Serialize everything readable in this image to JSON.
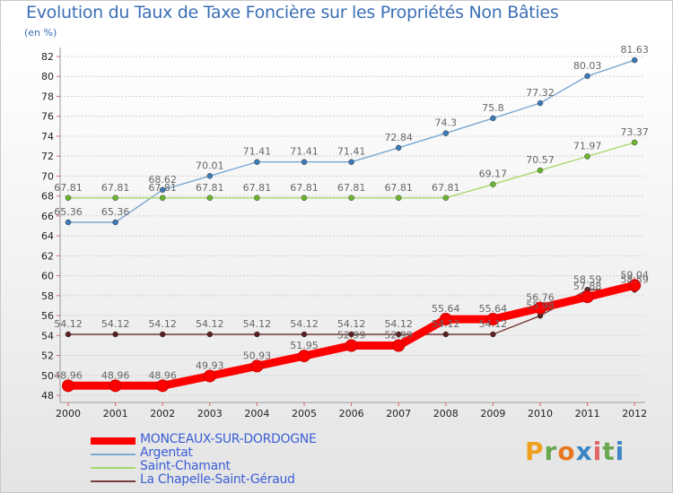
{
  "title": "Evolution du Taux de Taxe Foncière sur les Propriétés Non Bâties",
  "unit_label": "(en %)",
  "logo": {
    "text": "Proxiti",
    "letter_colors": [
      "#f0a020",
      "#6aa84f",
      "#e87722",
      "#3d85c6",
      "#e06666",
      "#6aa84f",
      "#3d85c6"
    ]
  },
  "chart_data": {
    "type": "line",
    "title": "Evolution du Taux de Taxe Foncière sur les Propriétés Non Bâties",
    "ylabel": "(en %)",
    "xlabel": "",
    "x": [
      "2000",
      "2001",
      "2002",
      "2003",
      "2004",
      "2005",
      "2006",
      "2007",
      "2008",
      "2009",
      "2010",
      "2011",
      "2012"
    ],
    "ylim": [
      48,
      82
    ],
    "yticks": [
      48,
      50,
      52,
      54,
      56,
      58,
      60,
      62,
      64,
      66,
      68,
      70,
      72,
      74,
      76,
      78,
      80,
      82
    ],
    "grid": "horizontal",
    "legend_position": "bottom-left",
    "series": [
      {
        "name": "MONCEAUX-SUR-DORDOGNE",
        "color": "#ff0000",
        "marker_color": "#ff0000",
        "style": "thick",
        "values": [
          48.96,
          48.96,
          48.96,
          49.93,
          50.93,
          51.95,
          52.99,
          52.99,
          55.64,
          55.64,
          56.76,
          57.88,
          59.04
        ],
        "labels": [
          "48.96",
          "48.96",
          "48.96",
          "49.93",
          "50.93",
          "51.95",
          "52.99",
          "52.99",
          "55.64",
          "55.64",
          "56.76",
          "57.88",
          "59.04"
        ]
      },
      {
        "name": "Argentat",
        "color": "#7aa8d4",
        "marker_color": "#3d7ab8",
        "style": "thin",
        "values": [
          65.36,
          65.36,
          68.62,
          70.01,
          71.41,
          71.41,
          71.41,
          72.84,
          74.3,
          75.8,
          77.32,
          80.03,
          81.63
        ],
        "labels": [
          "65.36",
          "65.36",
          "68.62",
          "70.01",
          "71.41",
          "71.41",
          "71.41",
          "72.84",
          "74.3",
          "75.8",
          "77.32",
          "80.03",
          "81.63"
        ]
      },
      {
        "name": "Saint-Chamant",
        "color": "#a6d96a",
        "marker_color": "#6bb52e",
        "style": "thin",
        "values": [
          67.81,
          67.81,
          67.81,
          67.81,
          67.81,
          67.81,
          67.81,
          67.81,
          67.81,
          69.17,
          70.57,
          71.97,
          73.37
        ],
        "labels": [
          "67.81",
          "67.81",
          "67.81",
          "67.81",
          "67.81",
          "67.81",
          "67.81",
          "67.81",
          "67.81",
          "69.17",
          "70.57",
          "71.97",
          "73.37"
        ]
      },
      {
        "name": "La Chapelle-Saint-Géraud",
        "color": "#7a3b3b",
        "marker_color": "#5c1f1f",
        "style": "thin",
        "values": [
          54.12,
          54.12,
          54.12,
          54.12,
          54.12,
          54.12,
          54.12,
          54.12,
          54.12,
          54.12,
          55.98,
          58.59,
          58.59
        ],
        "labels": [
          "54.12",
          "54.12",
          "54.12",
          "54.12",
          "54.12",
          "54.12",
          "54.12",
          "54.12",
          "54.12",
          "54.12",
          "55.98",
          "58.59",
          "58.59"
        ]
      }
    ]
  }
}
